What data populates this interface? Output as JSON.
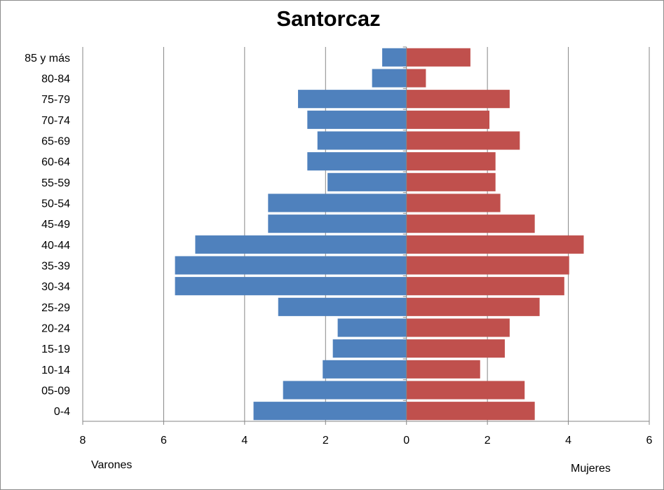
{
  "chart_data": {
    "type": "bar",
    "orientation": "horizontal",
    "title": "Santorcaz",
    "categories": [
      "85 y más",
      "80-84",
      "75-79",
      "70-74",
      "65-69",
      "60-64",
      "55-59",
      "50-54",
      "45-49",
      "40-44",
      "35-39",
      "30-34",
      "25-29",
      "20-24",
      "15-19",
      "10-14",
      "05-09",
      "0-4"
    ],
    "series": [
      {
        "name": "Varones",
        "color": "#4f81bd",
        "values": [
          0.6,
          0.85,
          2.68,
          2.45,
          2.2,
          2.45,
          1.95,
          3.42,
          3.42,
          5.22,
          5.72,
          5.72,
          3.17,
          1.7,
          1.82,
          2.07,
          3.05,
          3.78
        ]
      },
      {
        "name": "Mujeres",
        "color": "#c0504d",
        "values": [
          1.58,
          0.48,
          2.55,
          2.05,
          2.8,
          2.2,
          2.2,
          2.32,
          3.17,
          4.38,
          4.02,
          3.9,
          3.29,
          2.55,
          2.43,
          1.82,
          2.92,
          3.17
        ]
      }
    ],
    "xlim": [
      -8,
      6
    ],
    "xticks": [
      -8,
      -6,
      -4,
      -2,
      0,
      2,
      4,
      6
    ],
    "xtick_labels": [
      "8",
      "6",
      "4",
      "2",
      "0",
      "2",
      "4",
      "6"
    ],
    "grid": true,
    "axis_label_left": "Varones",
    "axis_label_right": "Mujeres"
  }
}
